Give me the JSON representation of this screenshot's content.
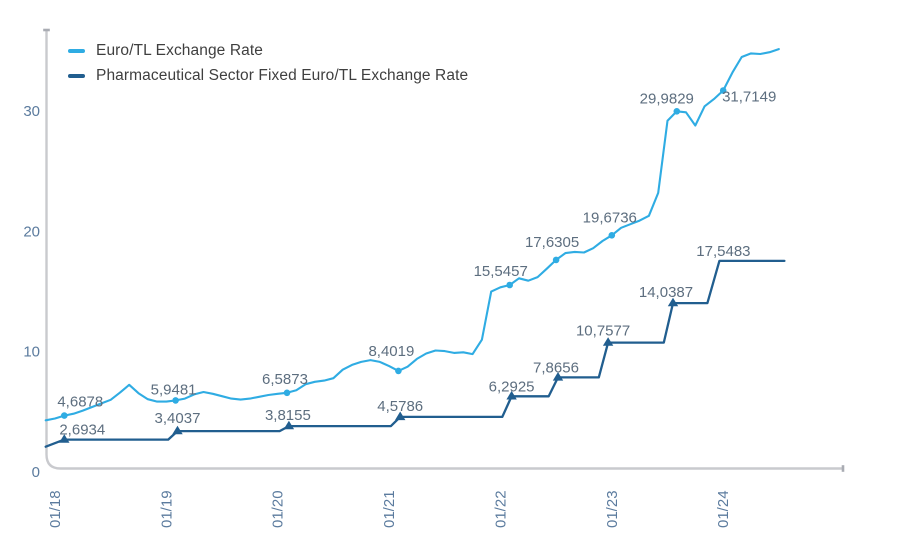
{
  "chart_data": {
    "type": "line",
    "title": "",
    "xlabel": "",
    "ylabel": "",
    "grid": false,
    "legend_position": "top-left",
    "y_axis": {
      "ticks": [
        0,
        10,
        20,
        30
      ],
      "range": [
        0,
        36
      ]
    },
    "x_axis": {
      "tick_labels": [
        "01/18",
        "01/19",
        "01/20",
        "01/21",
        "01/22",
        "01/23",
        "01/24"
      ],
      "tick_months": [
        0,
        12,
        24,
        36,
        48,
        60,
        72
      ]
    },
    "series": [
      {
        "name": "Euro/TL Exchange Rate",
        "color": "#2FACE3",
        "marker": "circle",
        "points": [
          [
            -1,
            4.3
          ],
          [
            0,
            4.45
          ],
          [
            1,
            4.6878
          ],
          [
            2,
            4.85
          ],
          [
            3,
            5.1
          ],
          [
            4,
            5.4
          ],
          [
            5,
            5.7
          ],
          [
            6,
            6.0
          ],
          [
            7,
            6.6
          ],
          [
            8,
            7.25
          ],
          [
            9,
            6.55
          ],
          [
            10,
            6.05
          ],
          [
            11,
            5.85
          ],
          [
            12,
            5.85
          ],
          [
            13,
            5.9481
          ],
          [
            14,
            6.1
          ],
          [
            15,
            6.45
          ],
          [
            16,
            6.65
          ],
          [
            17,
            6.5
          ],
          [
            18,
            6.3
          ],
          [
            19,
            6.1
          ],
          [
            20,
            6.02
          ],
          [
            21,
            6.1
          ],
          [
            22,
            6.25
          ],
          [
            23,
            6.4
          ],
          [
            24,
            6.5
          ],
          [
            25,
            6.5873
          ],
          [
            26,
            6.8
          ],
          [
            27,
            7.3
          ],
          [
            28,
            7.5
          ],
          [
            29,
            7.6
          ],
          [
            30,
            7.8
          ],
          [
            31,
            8.5
          ],
          [
            32,
            8.9
          ],
          [
            33,
            9.15
          ],
          [
            34,
            9.3
          ],
          [
            35,
            9.15
          ],
          [
            36,
            8.8
          ],
          [
            37,
            8.4019
          ],
          [
            38,
            8.75
          ],
          [
            39,
            9.4
          ],
          [
            40,
            9.85
          ],
          [
            41,
            10.1
          ],
          [
            42,
            10.05
          ],
          [
            43,
            9.9
          ],
          [
            44,
            9.95
          ],
          [
            45,
            9.8
          ],
          [
            46,
            11.0
          ],
          [
            47,
            15.0
          ],
          [
            48,
            15.35
          ],
          [
            49,
            15.5457
          ],
          [
            50,
            16.1
          ],
          [
            51,
            15.9
          ],
          [
            52,
            16.2
          ],
          [
            53,
            16.9
          ],
          [
            54,
            17.6305
          ],
          [
            55,
            18.2
          ],
          [
            56,
            18.3
          ],
          [
            57,
            18.25
          ],
          [
            58,
            18.6
          ],
          [
            59,
            19.2
          ],
          [
            60,
            19.6736
          ],
          [
            61,
            20.3
          ],
          [
            62,
            20.6
          ],
          [
            63,
            20.9
          ],
          [
            64,
            21.3
          ],
          [
            65,
            23.2
          ],
          [
            66,
            29.2
          ],
          [
            67,
            29.9829
          ],
          [
            68,
            29.9
          ],
          [
            69,
            28.8
          ],
          [
            70,
            30.4
          ],
          [
            71,
            31.0
          ],
          [
            72,
            31.7149
          ],
          [
            73,
            33.2
          ],
          [
            74,
            34.5
          ],
          [
            75,
            34.8
          ],
          [
            76,
            34.75
          ],
          [
            77,
            34.9
          ],
          [
            78,
            35.15
          ]
        ],
        "labeled_points": [
          {
            "m": 1,
            "v": 4.6878,
            "label": "4,6878",
            "dx": 16,
            "dy": -9
          },
          {
            "m": 13,
            "v": 5.9481,
            "label": "5,9481",
            "dx": -2,
            "dy": -6
          },
          {
            "m": 25,
            "v": 6.5873,
            "label": "6,5873",
            "dx": -2,
            "dy": -9
          },
          {
            "m": 37,
            "v": 8.4019,
            "label": "8,4019",
            "dx": -7,
            "dy": -15
          },
          {
            "m": 49,
            "v": 15.5457,
            "label": "15,5457",
            "dx": -9,
            "dy": -9
          },
          {
            "m": 54,
            "v": 17.6305,
            "label": "17,6305",
            "dx": -4,
            "dy": -13
          },
          {
            "m": 60,
            "v": 19.6736,
            "label": "19,6736",
            "dx": -2,
            "dy": -13
          },
          {
            "m": 67,
            "v": 29.9829,
            "label": "29,9829",
            "dx": -10,
            "dy": -8
          },
          {
            "m": 72,
            "v": 31.7149,
            "label": "31,7149",
            "dx": 26,
            "dy": 11
          }
        ]
      },
      {
        "name": "Pharmaceutical Sector Fixed Euro/TL Exchange Rate",
        "color": "#215E8F",
        "marker": "triangle",
        "points": [
          [
            -1,
            2.1
          ],
          [
            1,
            2.6934
          ],
          [
            12.2,
            2.6934
          ],
          [
            13.2,
            3.4037
          ],
          [
            24.2,
            3.4037
          ],
          [
            25.2,
            3.8155
          ],
          [
            36.2,
            3.8155
          ],
          [
            37.2,
            4.5786
          ],
          [
            48.2,
            4.5786
          ],
          [
            49.2,
            6.2925
          ],
          [
            53.2,
            6.2925
          ],
          [
            54.2,
            7.8656
          ],
          [
            58.6,
            7.8656
          ],
          [
            59.6,
            10.7577
          ],
          [
            65.6,
            10.7577
          ],
          [
            66.6,
            14.0387
          ],
          [
            70.3,
            14.0387
          ],
          [
            71.6,
            17.5483
          ],
          [
            78.6,
            17.5483
          ]
        ],
        "labeled_points": [
          {
            "m": 1,
            "v": 2.6934,
            "label": "2,6934",
            "dx": 18,
            "dy": -5,
            "marker": true
          },
          {
            "m": 13.2,
            "v": 3.4037,
            "label": "3,4037",
            "dx": 0,
            "dy": -8,
            "marker": true
          },
          {
            "m": 25.2,
            "v": 3.8155,
            "label": "3,8155",
            "dx": -1,
            "dy": -6,
            "marker": true
          },
          {
            "m": 37.2,
            "v": 4.5786,
            "label": "4,5786",
            "dx": 0,
            "dy": -6,
            "marker": true
          },
          {
            "m": 49.2,
            "v": 6.2925,
            "label": "6,2925",
            "dx": 0,
            "dy": -5,
            "marker": true
          },
          {
            "m": 54.2,
            "v": 7.8656,
            "label": "7,8656",
            "dx": -2,
            "dy": -5,
            "marker": true
          },
          {
            "m": 59.6,
            "v": 10.7577,
            "label": "10,7577",
            "dx": -5,
            "dy": -7,
            "marker": true
          },
          {
            "m": 66.6,
            "v": 14.0387,
            "label": "14,0387",
            "dx": -7,
            "dy": -6,
            "marker": true
          },
          {
            "m": 71.6,
            "v": 17.5483,
            "label": "17,5483",
            "dx": 4,
            "dy": -5,
            "marker": false
          }
        ]
      }
    ]
  }
}
